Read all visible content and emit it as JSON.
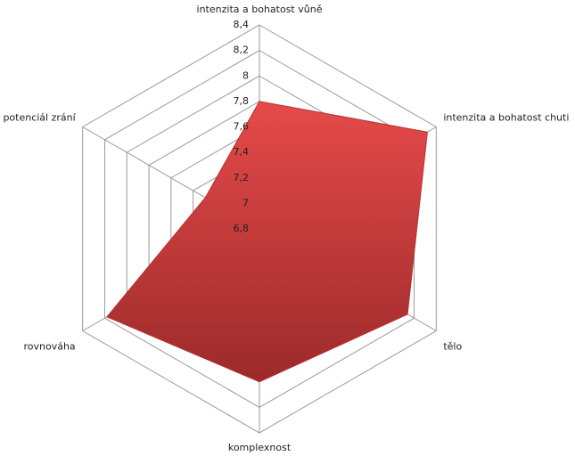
{
  "chart_data": {
    "type": "radar",
    "categories": [
      "intenzita a bohatost vůně",
      "intenzita a bohatost chuti",
      "tělo",
      "komplexnost",
      "rovnováha",
      "potenciál zrání"
    ],
    "values": [
      7.8,
      8.32,
      8.14,
      8.0,
      8.18,
      7.29
    ],
    "color": "#d64040",
    "ylim": [
      6.8,
      8.4
    ],
    "yticks": [
      {
        "value": 6.8,
        "label": "6,8"
      },
      7,
      {
        "value": 7.2,
        "label": "7,2"
      },
      {
        "value": 7.4,
        "label": "7,4"
      },
      {
        "value": 7.6,
        "label": "7,6"
      },
      {
        "value": 7.8,
        "label": "7,8"
      },
      8,
      {
        "value": 8.2,
        "label": "8,2"
      },
      {
        "value": 8.4,
        "label": "8,4"
      }
    ],
    "grid": true
  }
}
